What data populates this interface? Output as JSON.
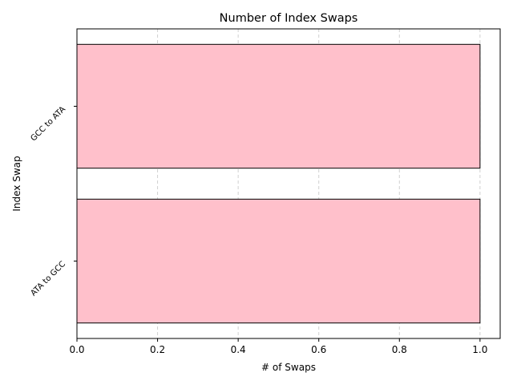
{
  "chart_data": {
    "type": "bar",
    "orientation": "horizontal",
    "title": "Number of Index Swaps",
    "xlabel": "# of Swaps",
    "ylabel": "Index Swap",
    "categories": [
      "ATA to GCC",
      "GCC to ATA"
    ],
    "values": [
      1,
      1
    ],
    "xlim": [
      0,
      1.05
    ],
    "xticks": [
      "0.0",
      "0.2",
      "0.4",
      "0.6",
      "0.8",
      "1.0"
    ],
    "grid": "vertical-dashed",
    "legend": "none",
    "colors": {
      "bar_fill": "#ffc0cb",
      "bar_edge": "#000000",
      "grid": "#d0d0d0"
    }
  }
}
